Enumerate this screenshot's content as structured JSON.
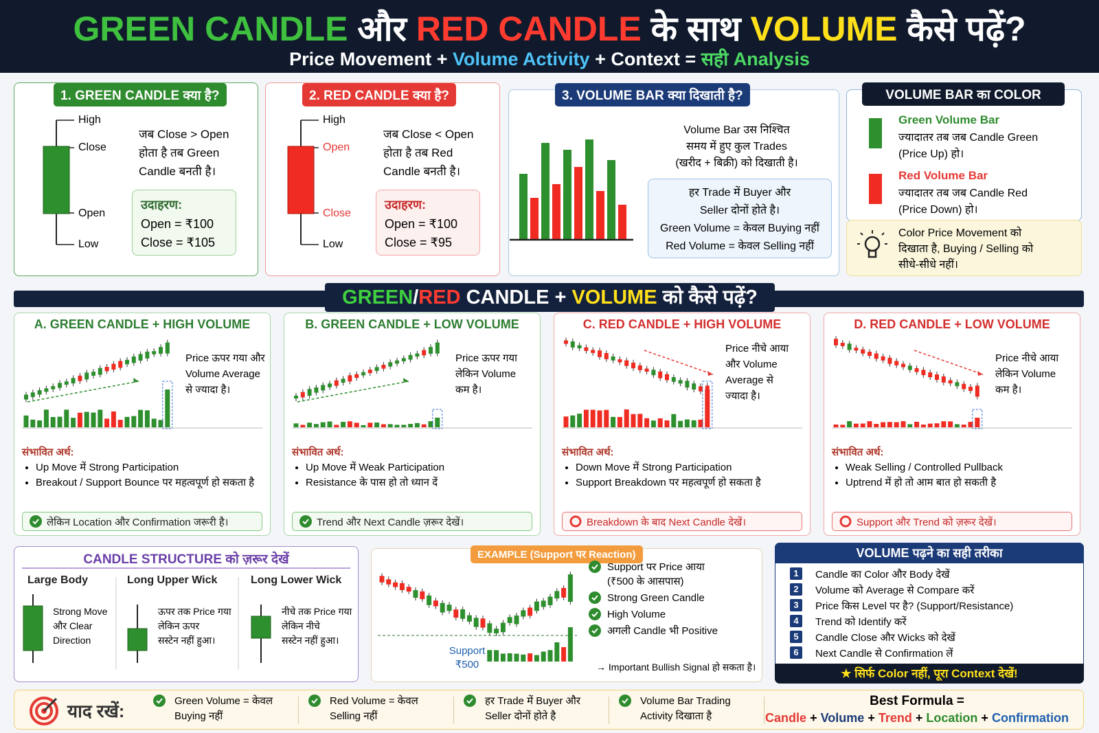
{
  "header": {
    "title": [
      "GREEN CANDLE",
      "और",
      "RED CANDLE",
      "के साथ",
      "VOLUME",
      "कैसे पढ़ें?"
    ],
    "subtitle": [
      "Price Movement",
      "+",
      "Volume Activity",
      "+",
      "Context",
      "=",
      "सही Analysis"
    ]
  },
  "top_panels": [
    {
      "title": "1. GREEN CANDLE क्या है?",
      "labels": [
        "High",
        "Close",
        "Open",
        "Low"
      ],
      "text": [
        "जब Close > Open",
        "होता है तब Green",
        "Candle बनती है।"
      ],
      "example_title": "उदाहरण:",
      "example": [
        "Open = ₹100",
        "Close = ₹105"
      ]
    },
    {
      "title": "2. RED CANDLE क्या है?",
      "labels": [
        "High",
        "Open",
        "Close",
        "Low"
      ],
      "text": [
        "जब Close < Open",
        "होता है तब Red",
        "Candle बनती है।"
      ],
      "example_title": "उदाहरण:",
      "example": [
        "Open = ₹100",
        "Close = ₹95"
      ]
    }
  ],
  "volume_bar": {
    "title": "3. VOLUME BAR क्या दिखाती है?",
    "text": [
      "Volume Bar उस निश्चित",
      "समय में हुए कुल Trades",
      "(खरीद + बिक्री) को दिखाती है।"
    ],
    "note": [
      "हर Trade में Buyer और",
      "Seller दोनों होते है।",
      "Green Volume = केवल Buying नहीं",
      "Red Volume = केवल Selling नहीं"
    ]
  },
  "volume_color": {
    "title": "VOLUME BAR का COLOR",
    "items": [
      {
        "name": "Green Volume Bar",
        "text": [
          "ज्यादातर तब जब Candle Green",
          "(Price Up) हो।"
        ]
      },
      {
        "name": "Red Volume Bar",
        "text": [
          "ज्यादातर तब जब Candle Red",
          "(Price Down) हो।"
        ]
      }
    ],
    "tip": [
      "Color Price Movement को",
      "दिखाता है, Buying / Selling को",
      "सीधे-सीधे नहीं।"
    ]
  },
  "section": {
    "title": [
      "GREEN",
      "/",
      "RED",
      "CANDLE +",
      "VOLUME",
      "को कैसे पढ़ें?"
    ]
  },
  "cases": [
    {
      "title": "A. GREEN CANDLE + HIGH VOLUME",
      "text": [
        "Price ऊपर गया और",
        "Volume Average",
        "से ज्यादा है।"
      ],
      "meaning_title": "संभावित अर्थ:",
      "meaning": [
        "Up Move में Strong Participation",
        "Breakout / Support Bounce पर महत्वपूर्ण हो सकता है"
      ],
      "note": "लेकिन Location और Confirmation जरूरी है।"
    },
    {
      "title": "B. GREEN CANDLE + LOW VOLUME",
      "text": [
        "Price ऊपर गया",
        "लेकिन Volume",
        "कम है।"
      ],
      "meaning_title": "संभावित अर्थ:",
      "meaning": [
        "Up Move में Weak Participation",
        "Resistance के पास हो तो ध्यान दें"
      ],
      "note": "Trend और Next Candle ज़रूर देखें।"
    },
    {
      "title": "C. RED CANDLE + HIGH VOLUME",
      "text": [
        "Price नीचे आया",
        "और Volume",
        "Average से",
        "ज्यादा है।"
      ],
      "meaning_title": "संभावित अर्थ:",
      "meaning": [
        "Down Move में Strong Participation",
        "Support Breakdown पर महत्वपूर्ण हो सकता है"
      ],
      "note": "Breakdown के बाद Next Candle देखें।"
    },
    {
      "title": "D. RED CANDLE + LOW VOLUME",
      "text": [
        "Price नीचे आया",
        "लेकिन Volume",
        "कम है।"
      ],
      "meaning_title": "संभावित अर्थ:",
      "meaning": [
        "Weak Selling / Controlled Pullback",
        "Uptrend में हो तो आम बात हो सकती है"
      ],
      "note": "Support और Trend को ज़रूर देखें।"
    }
  ],
  "structure": {
    "title": "CANDLE STRUCTURE को ज़रूर देखें",
    "items": [
      {
        "name": "Large Body",
        "text": [
          "Strong Move",
          "और Clear",
          "Direction"
        ]
      },
      {
        "name": "Long Upper Wick",
        "text": [
          "ऊपर तक Price गया",
          "लेकिन ऊपर",
          "सस्टेन नहीं हुआ।"
        ]
      },
      {
        "name": "Long Lower Wick",
        "text": [
          "नीचे तक Price गया",
          "लेकिन नीचे",
          "सस्टेन नहीं हुआ।"
        ]
      }
    ]
  },
  "example": {
    "title": "EXAMPLE (Support पर Reaction)",
    "support": [
      "Support",
      "₹500"
    ],
    "checks": [
      [
        "Support पर Price आया",
        "(₹500 के आसपास)"
      ],
      [
        "Strong Green Candle"
      ],
      [
        "High Volume"
      ],
      [
        "अगली Candle भी Positive"
      ]
    ],
    "conclusion": "→ Important Bullish Signal हो सकता है।"
  },
  "steps": {
    "title": "VOLUME पढ़ने का सही तरीका",
    "numbers": [
      1,
      2,
      3,
      4,
      5,
      6
    ],
    "items": [
      "Candle का Color और Body देखें",
      "Volume को Average से Compare करें",
      "Price किस Level पर है? (Support/Resistance)",
      "Trend को Identify करें",
      "Candle Close और Wicks को देखें",
      "Next Candle से Confirmation लें"
    ],
    "footer": "सिर्फ Color नहीं, पूरा Context देखें!"
  },
  "remember": {
    "title": "याद रखें:",
    "items": [
      [
        "Green Volume = केवल",
        "Buying नहीं"
      ],
      [
        "Red Volume = केवल",
        "Selling नहीं"
      ],
      [
        "हर Trade में Buyer और",
        "Seller दोनों होते है"
      ],
      [
        "Volume Bar Trading",
        "Activity दिखाता है"
      ]
    ],
    "formula_title": "Best Formula =",
    "formula": [
      "Candle",
      "+",
      "Volume",
      "+",
      "Trend",
      "+",
      "Location",
      "+",
      "Confirmation"
    ]
  }
}
